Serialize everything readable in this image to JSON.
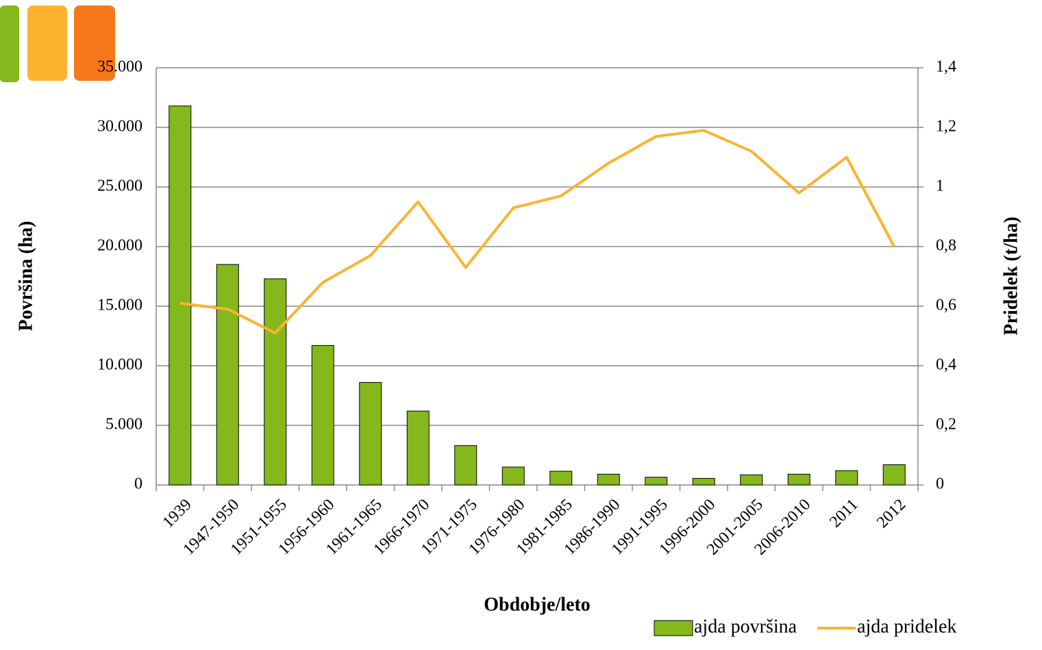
{
  "chart_data": {
    "type": "bar",
    "categories": [
      "1939",
      "1947-1950",
      "1951-1955",
      "1956-1960",
      "1961-1965",
      "1966-1970",
      "1971-1975",
      "1976-1980",
      "1981-1985",
      "1986-1990",
      "1991-1995",
      "1996-2000",
      "2001-2005",
      "2006-2010",
      "2011",
      "2012"
    ],
    "series": [
      {
        "name": "ajda površina",
        "type": "bar",
        "color": "#85b81c",
        "values": [
          31800,
          18500,
          17300,
          11700,
          8600,
          6200,
          3300,
          1500,
          1150,
          900,
          650,
          550,
          850,
          900,
          1200,
          1700
        ]
      },
      {
        "name": "ajda pridelek",
        "type": "line",
        "axis": "y2",
        "color": "#fbb330",
        "values": [
          0.61,
          0.59,
          0.51,
          0.68,
          0.77,
          0.95,
          0.73,
          0.93,
          0.97,
          1.08,
          1.17,
          1.19,
          1.12,
          0.98,
          1.1,
          0.8
        ]
      }
    ],
    "xlabel": "Obdobje/leto",
    "ylabel": "Površina (ha)",
    "y2label": "Pridelek (t/ha)",
    "ylim": [
      0,
      35000
    ],
    "yticks": [
      0,
      {
        "value": 5000,
        "label": "5.000"
      },
      {
        "value": 10000,
        "label": "10.000"
      },
      {
        "value": 15000,
        "label": "15.000"
      },
      {
        "value": 20000,
        "label": "20.000"
      },
      {
        "value": 25000,
        "label": "25.000"
      },
      {
        "value": 30000,
        "label": "30.000"
      },
      {
        "value": 35000,
        "label": "35.000"
      }
    ],
    "y2lim": [
      0,
      1.4
    ],
    "y2ticks": [
      0,
      {
        "value": 0.2,
        "label": "0,2"
      },
      {
        "value": 0.4,
        "label": "0,4"
      },
      {
        "value": 0.6,
        "label": "0,6"
      },
      {
        "value": 0.8,
        "label": "0,8"
      },
      1,
      {
        "value": 1.2,
        "label": "1,2"
      },
      {
        "value": 1.4,
        "label": "1,4"
      }
    ],
    "grid": true,
    "legend": "bottom-right"
  }
}
